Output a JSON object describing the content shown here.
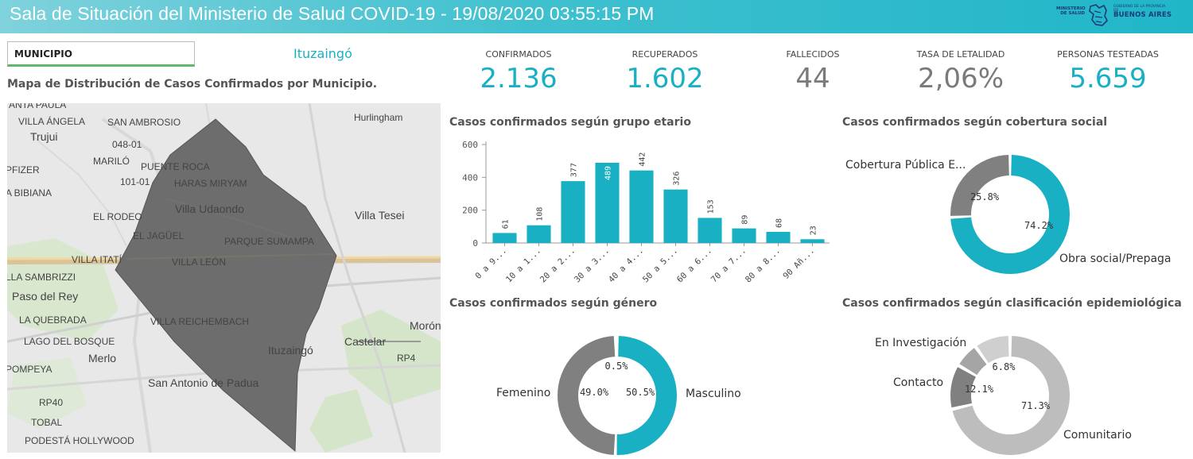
{
  "header": {
    "title": "Sala de Situación del Ministerio de Salud COVID-19 - 19/08/2020 03:55:15 PM"
  },
  "logo": {
    "line1": "MINISTERIO DE SALUD",
    "line2": "GOBIERNO DE LA PROVINCIA DE",
    "line3": "BUENOS AIRES"
  },
  "filter": {
    "label": "MUNICIPIO",
    "value": "Ituzaingó"
  },
  "map": {
    "title": "Mapa de Distribución de Casos Confirmados por Municipio.",
    "labels": [
      "ANTA PAULA",
      "VILLA ÁNGELA",
      "SAN AMBROSIO",
      "Hurlingham",
      "Trujui",
      "048-01",
      "MARILÓ",
      "PUENTE ROCA",
      "PFIZER",
      "101-01",
      "HARAS MIRYAM",
      "A BIBIANA",
      "Villa Udaondo",
      "Villa Tesei",
      "EL RODEO",
      "EL JAGÜEL",
      "PARQUE SUMAMPA",
      "VILLA ITATÍ",
      "VILLA LEÓN",
      "LLA SAMBRIZZI",
      "Paso del Rey",
      "LA QUEBRADA",
      "VILLA REICHEMBACH",
      "Morón",
      "LAGO DEL BOSQUE",
      "Ituzaingó",
      "Castelar",
      "Merlo",
      "RP4",
      "POMPEYA",
      "San Antonio de Padua",
      "RP40",
      "TOBAL",
      "PODESTÁ HOLLYWOOD"
    ]
  },
  "kpis": [
    {
      "label": "CONFIRMADOS",
      "value": "2.136",
      "color": "#1ab0c4"
    },
    {
      "label": "RECUPERADOS",
      "value": "1.602",
      "color": "#1ab0c4"
    },
    {
      "label": "FALLECIDOS",
      "value": "44",
      "color": "#7a7a7a"
    },
    {
      "label": "TASA DE LETALIDAD",
      "value": "2,06%",
      "color": "#7a7a7a"
    },
    {
      "label": "PERSONAS TESTEADAS",
      "value": "5.659",
      "color": "#1ab0c4"
    }
  ],
  "charts": {
    "age_title": "Casos confirmados según grupo etario",
    "coverage_title": "Casos confirmados según cobertura social",
    "gender_title": "Casos confirmados según género",
    "epi_title": "Casos confirmados según clasificación epidemiológica"
  },
  "chart_data": [
    {
      "type": "bar",
      "title": "Casos confirmados según grupo etario",
      "categories": [
        "0 a 9...",
        "10 a 1...",
        "20 a 2...",
        "30 a 3...",
        "40 a 4...",
        "50 a 5...",
        "60 a 6...",
        "70 a 7...",
        "80 a 8...",
        "90 Añ..."
      ],
      "values": [
        61,
        108,
        377,
        489,
        442,
        326,
        153,
        89,
        68,
        23
      ],
      "ylim": [
        0,
        600
      ],
      "yticks": [
        0,
        200,
        400,
        600
      ],
      "color": "#1ab0c4",
      "grid": false
    },
    {
      "type": "pie",
      "title": "Casos confirmados según cobertura social",
      "labels": [
        "Obra social/Prepaga",
        "Cobertura Pública E..."
      ],
      "values": [
        74.2,
        25.8
      ],
      "pct_labels": [
        "74.2%",
        "25.8%"
      ],
      "colors": [
        "#1ab0c4",
        "#808080"
      ]
    },
    {
      "type": "pie",
      "title": "Casos confirmados según género",
      "labels": [
        "Masculino",
        "Femenino",
        ""
      ],
      "values": [
        50.5,
        49.0,
        0.5
      ],
      "pct_labels": [
        "50.5%",
        "49.0%",
        "0.5%"
      ],
      "colors": [
        "#1ab0c4",
        "#808080",
        "#d0d0d0"
      ]
    },
    {
      "type": "pie",
      "title": "Casos confirmados según clasificación epidemiológica",
      "labels": [
        "Comunitario",
        "Contacto",
        "En Investigación",
        ""
      ],
      "values": [
        71.3,
        12.1,
        6.8,
        9.8
      ],
      "pct_labels": [
        "71.3%",
        "12.1%",
        "6.8%"
      ],
      "colors": [
        "#bdbdbd",
        "#808080",
        "#a5a5a5",
        "#cfcfcf"
      ]
    }
  ]
}
